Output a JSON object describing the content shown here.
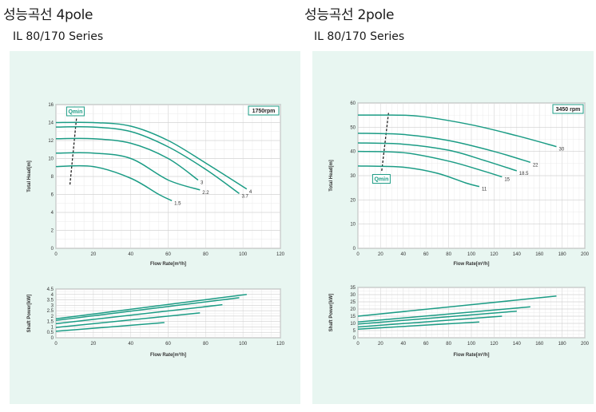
{
  "left": {
    "heading": "성능곡선 4pole",
    "subheading": "IL 80/170 Series"
  },
  "right": {
    "heading": "성능곡선 2pole",
    "subheading": "IL 80/170 Series"
  },
  "colors": {
    "curve": "#1b9c85",
    "panel_bg": "#e8f6f1",
    "badge": "#1b9c85"
  },
  "chart_data": [
    {
      "id": "head4",
      "type": "line",
      "xlabel": "Flow Rate[m³/h]",
      "ylabel": "Total Head[m]",
      "xlim": [
        0,
        120
      ],
      "ylim": [
        0,
        16
      ],
      "xticks": [
        0,
        20,
        40,
        60,
        80,
        100,
        120
      ],
      "yticks": [
        0,
        2,
        4,
        6,
        8,
        10,
        12,
        14,
        16
      ],
      "badge": "1750rpm",
      "qmin_label": "Qmin",
      "qmin_line": [
        [
          7.5,
          7.1
        ],
        [
          11,
          14.5
        ]
      ],
      "qmin_badge_anchor": [
        10,
        15.2
      ],
      "grid": true,
      "series": [
        {
          "name": "4",
          "points": [
            [
              0,
              14
            ],
            [
              20,
              14
            ],
            [
              40,
              13.6
            ],
            [
              60,
              12
            ],
            [
              80,
              9.5
            ],
            [
              102,
              6.6
            ]
          ]
        },
        {
          "name": "3.7",
          "points": [
            [
              0,
              13.5
            ],
            [
              20,
              13.5
            ],
            [
              40,
              13
            ],
            [
              60,
              11.3
            ],
            [
              80,
              8.8
            ],
            [
              98,
              6.1
            ]
          ]
        },
        {
          "name": "3",
          "points": [
            [
              0,
              12.2
            ],
            [
              20,
              12.2
            ],
            [
              40,
              11.7
            ],
            [
              60,
              10
            ],
            [
              76,
              7.6
            ]
          ]
        },
        {
          "name": "2.2",
          "points": [
            [
              0,
              10.6
            ],
            [
              20,
              10.6
            ],
            [
              40,
              10
            ],
            [
              60,
              7.6
            ],
            [
              77,
              6.5
            ]
          ]
        },
        {
          "name": "1.5",
          "points": [
            [
              0,
              9.1
            ],
            [
              20,
              9.1
            ],
            [
              40,
              7.8
            ],
            [
              55,
              6
            ],
            [
              62,
              5.3
            ]
          ]
        }
      ]
    },
    {
      "id": "power4",
      "type": "line",
      "xlabel": "Flow Rate[m³/h]",
      "ylabel": "Shaft Power[kW]",
      "xlim": [
        0,
        120
      ],
      "ylim": [
        0,
        4.5
      ],
      "xticks": [
        0,
        20,
        40,
        60,
        80,
        100,
        120
      ],
      "yticks": [
        0,
        0.5,
        1,
        1.5,
        2,
        2.5,
        3,
        3.5,
        4,
        4.5
      ],
      "grid": true,
      "series": [
        {
          "name": "4",
          "points": [
            [
              0,
              1.75
            ],
            [
              102,
              4
            ]
          ]
        },
        {
          "name": "3.7",
          "points": [
            [
              0,
              1.6
            ],
            [
              98,
              3.7
            ]
          ]
        },
        {
          "name": "3",
          "points": [
            [
              0,
              1.3
            ],
            [
              89,
              3.05
            ]
          ]
        },
        {
          "name": "2.2",
          "points": [
            [
              0,
              0.95
            ],
            [
              77,
              2.3
            ]
          ]
        },
        {
          "name": "1.5",
          "points": [
            [
              0,
              0.6
            ],
            [
              58,
              1.4
            ]
          ]
        }
      ]
    },
    {
      "id": "head2",
      "type": "line",
      "xlabel": "Flow Rate[m³/h]",
      "ylabel": "Total Head[m]",
      "xlim": [
        0,
        200
      ],
      "ylim": [
        0,
        60
      ],
      "xticks": [
        0,
        20,
        40,
        60,
        80,
        100,
        120,
        140,
        160,
        180,
        200
      ],
      "yticks": [
        0,
        10,
        20,
        30,
        40,
        50,
        60
      ],
      "badge": "3450 rpm",
      "qmin_label": "Qmin",
      "qmin_line": [
        [
          21,
          32
        ],
        [
          27,
          56
        ]
      ],
      "qmin_badge_anchor": [
        20,
        28.5
      ],
      "grid": true,
      "series": [
        {
          "name": "30",
          "points": [
            [
              0,
              55
            ],
            [
              30,
              55
            ],
            [
              55,
              54.5
            ],
            [
              100,
              51
            ],
            [
              140,
              46.5
            ],
            [
              175,
              42
            ]
          ]
        },
        {
          "name": "22",
          "points": [
            [
              0,
              47.5
            ],
            [
              40,
              47
            ],
            [
              80,
              44.5
            ],
            [
              120,
              40
            ],
            [
              152,
              35.5
            ]
          ]
        },
        {
          "name": "18.5",
          "points": [
            [
              0,
              43.5
            ],
            [
              40,
              43
            ],
            [
              80,
              40.5
            ],
            [
              110,
              36.5
            ],
            [
              140,
              32
            ]
          ]
        },
        {
          "name": "15",
          "points": [
            [
              0,
              40
            ],
            [
              40,
              39.5
            ],
            [
              80,
              36
            ],
            [
              110,
              32
            ],
            [
              127,
              29.5
            ]
          ]
        },
        {
          "name": "11",
          "points": [
            [
              0,
              34
            ],
            [
              40,
              33.5
            ],
            [
              70,
              31
            ],
            [
              95,
              27
            ],
            [
              107,
              25.5
            ]
          ]
        }
      ]
    },
    {
      "id": "power2",
      "type": "line",
      "xlabel": "Flow Rate[m³/h]",
      "ylabel": "Shaft Power[kW]",
      "xlim": [
        0,
        200
      ],
      "ylim": [
        0,
        35
      ],
      "xticks": [
        0,
        20,
        40,
        60,
        80,
        100,
        120,
        140,
        160,
        180,
        200
      ],
      "yticks": [
        0,
        5,
        10,
        15,
        20,
        25,
        30,
        35
      ],
      "grid": true,
      "series": [
        {
          "name": "30",
          "points": [
            [
              0,
              15
            ],
            [
              175,
              29
            ]
          ]
        },
        {
          "name": "22",
          "points": [
            [
              0,
              11
            ],
            [
              152,
              21.5
            ]
          ]
        },
        {
          "name": "18.5",
          "points": [
            [
              0,
              9.5
            ],
            [
              140,
              18.5
            ]
          ]
        },
        {
          "name": "15",
          "points": [
            [
              0,
              7.5
            ],
            [
              127,
              15
            ]
          ]
        },
        {
          "name": "11",
          "points": [
            [
              0,
              6
            ],
            [
              107,
              11
            ]
          ]
        }
      ]
    }
  ]
}
